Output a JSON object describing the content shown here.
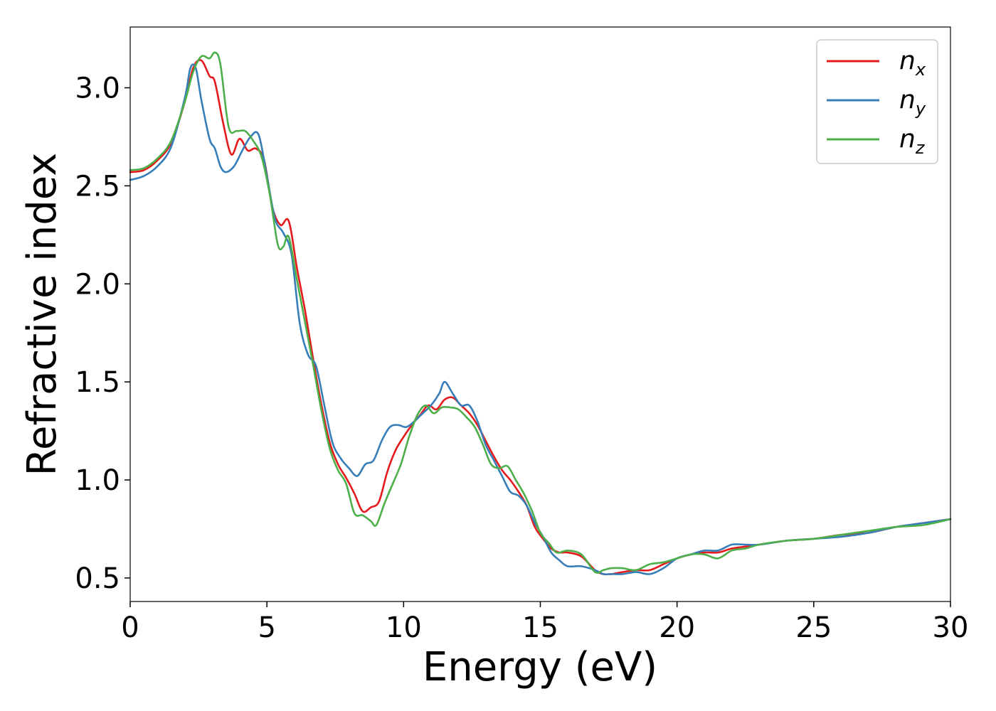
{
  "chart_data": {
    "type": "line",
    "title": "",
    "xlabel": "Energy (eV)",
    "ylabel": "Refractive index",
    "xlim": [
      0,
      30
    ],
    "ylim": [
      0.38,
      3.31
    ],
    "xticks": [
      0,
      5,
      10,
      15,
      20,
      25,
      30
    ],
    "xtick_labels": [
      "0",
      "5",
      "10",
      "15",
      "20",
      "25",
      "30"
    ],
    "yticks": [
      0.5,
      1.0,
      1.5,
      2.0,
      2.5,
      3.0
    ],
    "ytick_labels": [
      "0.5",
      "1.0",
      "1.5",
      "2.0",
      "2.5",
      "3.0"
    ],
    "grid": false,
    "legend_position": "top-right",
    "series": [
      {
        "name": "n",
        "subscript": "x",
        "color": "#e41a1c",
        "x": [
          0,
          0.5,
          1.0,
          1.5,
          2.0,
          2.3,
          2.6,
          2.9,
          3.1,
          3.4,
          3.7,
          4.0,
          4.3,
          4.6,
          4.9,
          5.2,
          5.5,
          5.8,
          6.1,
          6.4,
          6.7,
          7.0,
          7.3,
          7.6,
          7.9,
          8.2,
          8.5,
          8.8,
          9.1,
          9.4,
          9.7,
          10.0,
          10.3,
          10.6,
          10.9,
          11.2,
          11.5,
          11.8,
          12.1,
          12.4,
          12.7,
          13.0,
          13.3,
          13.6,
          13.9,
          14.2,
          14.5,
          14.8,
          15.1,
          15.4,
          15.7,
          16.0,
          16.5,
          17.0,
          17.3,
          17.6,
          18.0,
          18.5,
          19.0,
          19.5,
          20.0,
          20.5,
          21.0,
          21.5,
          22.0,
          22.5,
          23.0,
          24.0,
          25.0,
          26.0,
          27.0,
          28.0,
          29.0,
          30.0
        ],
        "y": [
          2.57,
          2.58,
          2.63,
          2.72,
          2.93,
          3.1,
          3.14,
          3.06,
          3.03,
          2.82,
          2.66,
          2.74,
          2.68,
          2.69,
          2.63,
          2.39,
          2.3,
          2.32,
          2.08,
          1.86,
          1.61,
          1.38,
          1.19,
          1.08,
          1.01,
          0.93,
          0.84,
          0.86,
          0.89,
          1.04,
          1.15,
          1.22,
          1.28,
          1.33,
          1.38,
          1.36,
          1.41,
          1.42,
          1.38,
          1.34,
          1.28,
          1.2,
          1.12,
          1.05,
          1.0,
          0.94,
          0.87,
          0.76,
          0.7,
          0.65,
          0.63,
          0.63,
          0.61,
          0.54,
          0.52,
          0.52,
          0.53,
          0.54,
          0.54,
          0.57,
          0.6,
          0.62,
          0.63,
          0.63,
          0.65,
          0.66,
          0.67,
          0.69,
          0.7,
          0.72,
          0.73,
          0.76,
          0.78,
          0.8
        ]
      },
      {
        "name": "n",
        "subscript": "y",
        "color": "#377eb8",
        "x": [
          0,
          0.5,
          1.0,
          1.5,
          2.0,
          2.2,
          2.4,
          2.6,
          2.9,
          3.1,
          3.3,
          3.5,
          3.8,
          4.1,
          4.4,
          4.7,
          5.0,
          5.3,
          5.6,
          5.9,
          6.2,
          6.5,
          6.8,
          7.1,
          7.4,
          7.7,
          8.0,
          8.3,
          8.6,
          8.9,
          9.2,
          9.5,
          9.8,
          10.1,
          10.4,
          10.7,
          11.0,
          11.3,
          11.5,
          11.8,
          12.1,
          12.4,
          12.7,
          13.0,
          13.3,
          13.6,
          13.9,
          14.2,
          14.5,
          14.8,
          15.1,
          15.4,
          15.7,
          16.0,
          16.5,
          17.0,
          17.3,
          17.6,
          18.0,
          18.5,
          19.0,
          19.5,
          20.0,
          20.5,
          21.0,
          21.5,
          22.0,
          22.5,
          23.0,
          24.0,
          25.0,
          26.0,
          27.0,
          28.0,
          29.0,
          30.0
        ],
        "y": [
          2.53,
          2.55,
          2.6,
          2.7,
          2.95,
          3.1,
          3.1,
          2.94,
          2.74,
          2.69,
          2.6,
          2.57,
          2.6,
          2.68,
          2.75,
          2.76,
          2.55,
          2.33,
          2.26,
          2.15,
          1.8,
          1.64,
          1.58,
          1.38,
          1.19,
          1.11,
          1.06,
          1.02,
          1.08,
          1.1,
          1.2,
          1.27,
          1.28,
          1.27,
          1.3,
          1.34,
          1.38,
          1.44,
          1.5,
          1.44,
          1.38,
          1.38,
          1.3,
          1.18,
          1.1,
          1.02,
          0.94,
          0.92,
          0.87,
          0.78,
          0.71,
          0.63,
          0.59,
          0.56,
          0.56,
          0.54,
          0.52,
          0.52,
          0.52,
          0.53,
          0.52,
          0.55,
          0.6,
          0.62,
          0.64,
          0.64,
          0.67,
          0.67,
          0.67,
          0.69,
          0.7,
          0.71,
          0.73,
          0.76,
          0.78,
          0.8
        ]
      },
      {
        "name": "n",
        "subscript": "z",
        "color": "#4daf4a",
        "x": [
          0,
          0.5,
          1.0,
          1.5,
          2.0,
          2.3,
          2.6,
          2.9,
          3.1,
          3.3,
          3.6,
          3.9,
          4.2,
          4.5,
          4.8,
          5.1,
          5.4,
          5.6,
          5.8,
          6.1,
          6.4,
          6.7,
          7.0,
          7.3,
          7.6,
          7.9,
          8.2,
          8.5,
          8.8,
          9.0,
          9.3,
          9.6,
          9.9,
          10.2,
          10.5,
          10.8,
          11.1,
          11.4,
          11.7,
          12.0,
          12.3,
          12.6,
          12.9,
          13.2,
          13.5,
          13.8,
          14.1,
          14.4,
          14.7,
          15.0,
          15.3,
          15.6,
          16.0,
          16.5,
          17.0,
          17.3,
          17.6,
          18.0,
          18.5,
          19.0,
          19.5,
          20.0,
          20.5,
          21.0,
          21.5,
          22.0,
          22.5,
          23.0,
          24.0,
          25.0,
          26.0,
          27.0,
          28.0,
          29.0,
          30.0
        ],
        "y": [
          2.58,
          2.59,
          2.64,
          2.73,
          2.93,
          3.08,
          3.16,
          3.15,
          3.18,
          3.12,
          2.8,
          2.78,
          2.78,
          2.73,
          2.65,
          2.46,
          2.2,
          2.19,
          2.24,
          2.02,
          1.8,
          1.58,
          1.35,
          1.16,
          1.05,
          0.98,
          0.83,
          0.82,
          0.79,
          0.77,
          0.88,
          0.98,
          1.08,
          1.22,
          1.33,
          1.38,
          1.34,
          1.37,
          1.37,
          1.36,
          1.32,
          1.27,
          1.18,
          1.08,
          1.06,
          1.07,
          1.0,
          0.93,
          0.84,
          0.73,
          0.68,
          0.63,
          0.64,
          0.62,
          0.53,
          0.54,
          0.55,
          0.55,
          0.54,
          0.57,
          0.58,
          0.6,
          0.62,
          0.62,
          0.6,
          0.64,
          0.65,
          0.67,
          0.69,
          0.7,
          0.72,
          0.74,
          0.76,
          0.77,
          0.8
        ]
      }
    ]
  }
}
